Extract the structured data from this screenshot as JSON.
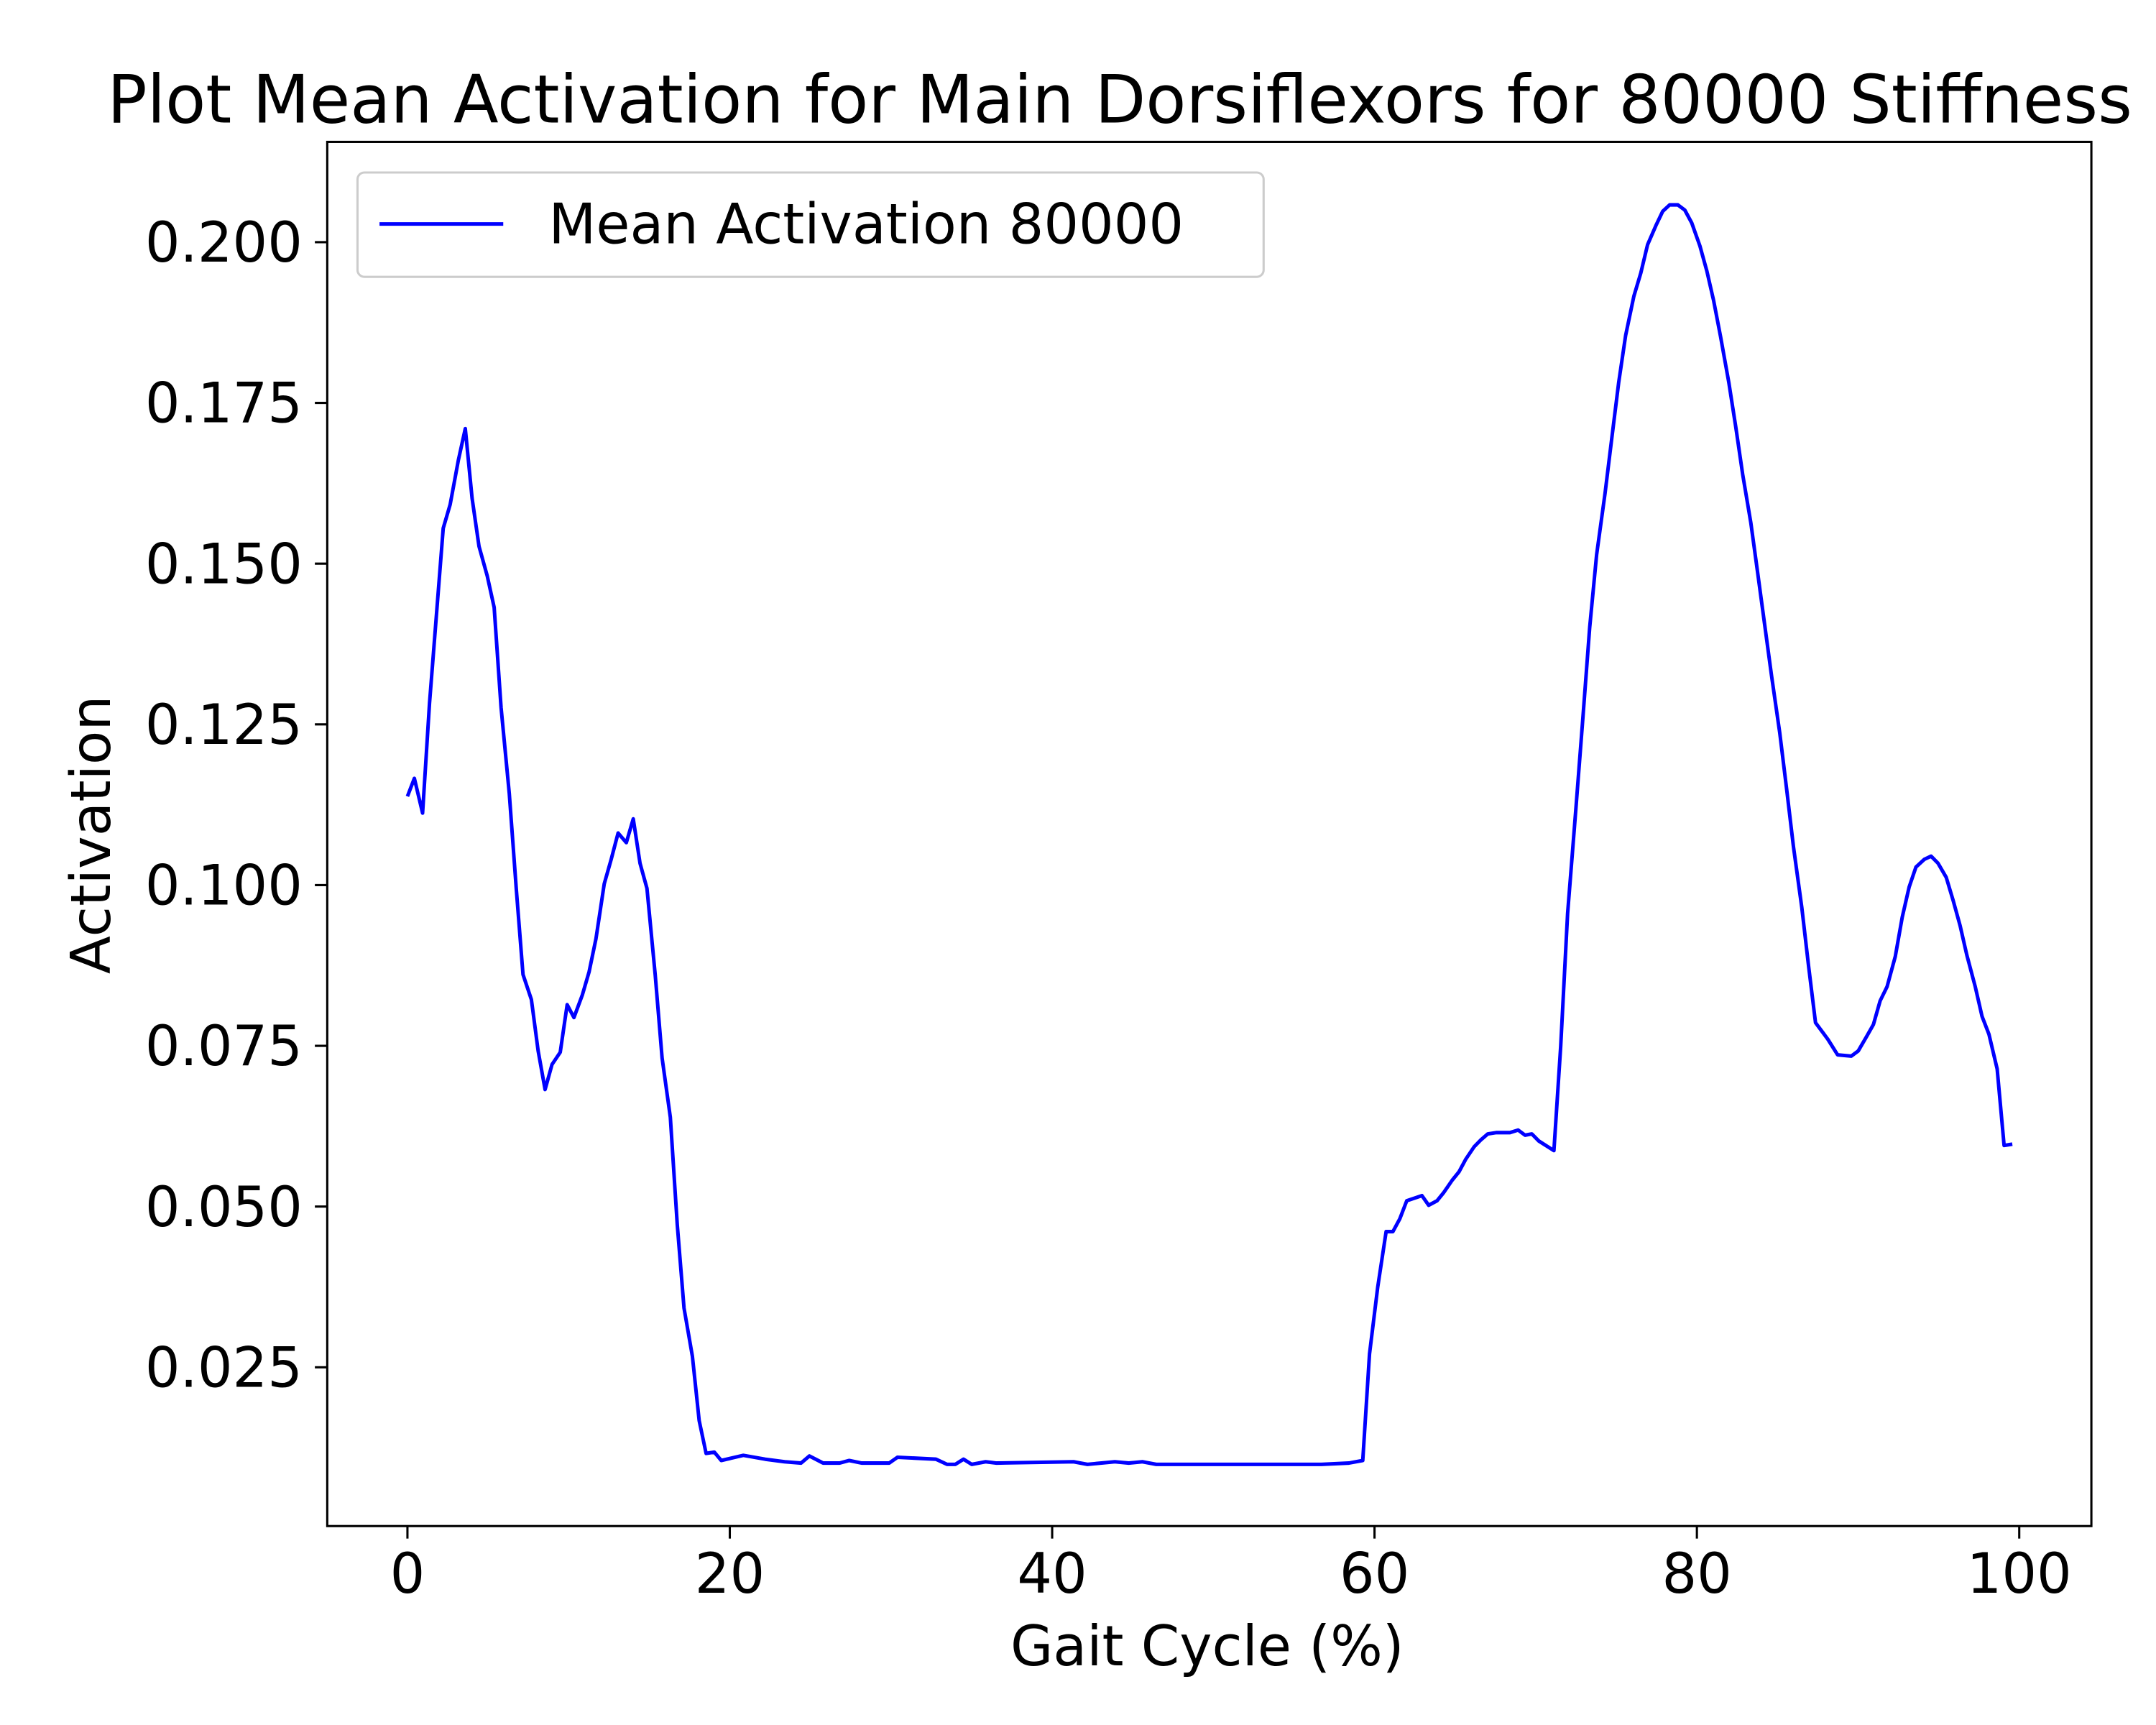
{
  "chart_data": {
    "type": "line",
    "title": "Plot Mean Activation for Main Dorsiflexors for 80000 Stiffness",
    "x_label": "Gait Cycle (%)",
    "y_label": "Activation",
    "legend": "upper left",
    "xlim": [
      -4.975,
      104.475
    ],
    "ylim": [
      0.0003,
      0.2156
    ],
    "xticks": [
      0,
      20,
      40,
      60,
      80,
      100
    ],
    "yticks": [
      0.025,
      {
        "value": 0.05,
        "label": "0.050"
      },
      0.075,
      {
        "value": 0.1,
        "label": "0.100"
      },
      0.125,
      {
        "value": 0.15,
        "label": "0.150"
      },
      0.175,
      {
        "value": 0.2,
        "label": "0.200"
      }
    ],
    "x": [
      0,
      0.43,
      0.94,
      1.37,
      2.22,
      2.65,
      3.16,
      3.59,
      4.01,
      4.44,
      4.95,
      5.38,
      5.81,
      6.32,
      6.75,
      7.17,
      7.69,
      8.11,
      8.54,
      8.97,
      9.48,
      9.91,
      10.33,
      10.85,
      11.27,
      11.7,
      12.21,
      12.64,
      13.07,
      13.58,
      14.01,
      14.43,
      14.86,
      15.37,
      15.8,
      16.31,
      16.74,
      17.16,
      17.68,
      18.1,
      18.53,
      19.04,
      19.47,
      20.84,
      22.2,
      23.4,
      24.42,
      24.94,
      25.79,
      26.81,
      27.41,
      28.18,
      29.89,
      30.4,
      32.79,
      33.48,
      33.99,
      34.5,
      35.01,
      35.87,
      36.55,
      41.33,
      42.19,
      43.89,
      44.75,
      45.6,
      46.46,
      56.7,
      58.41,
      59.27,
      59.69,
      60.2,
      60.72,
      61.14,
      61.57,
      62.0,
      62.94,
      63.36,
      63.88,
      64.3,
      64.82,
      65.24,
      65.67,
      66.18,
      66.61,
      67.03,
      67.55,
      68.4,
      68.91,
      69.34,
      69.76,
      70.19,
      71.13,
      71.55,
      71.98,
      72.5,
      72.93,
      73.35,
      73.78,
      74.3,
      74.72,
      75.15,
      75.58,
      76.09,
      76.52,
      76.94,
      77.46,
      77.88,
      78.31,
      78.82,
      79.25,
      79.68,
      80.19,
      80.62,
      81.04,
      81.47,
      81.98,
      82.41,
      82.84,
      83.35,
      83.77,
      84.2,
      84.63,
      85.14,
      85.57,
      85.99,
      86.51,
      86.93,
      87.36,
      88.13,
      88.73,
      89.58,
      90.01,
      90.52,
      90.95,
      91.37,
      91.8,
      92.31,
      92.74,
      93.17,
      93.59,
      94.11,
      94.53,
      94.96,
      95.47,
      95.9,
      96.33,
      96.75,
      97.27,
      97.69,
      98.12,
      98.63,
      99.06,
      99.57
    ],
    "series": [
      {
        "name": "Mean Activation 80000",
        "color": "#0000ff",
        "values": [
          0.1138,
          0.1166,
          0.1112,
          0.1283,
          0.1555,
          0.1592,
          0.1661,
          0.171,
          0.1602,
          0.1527,
          0.1481,
          0.1432,
          0.1276,
          0.1142,
          0.0995,
          0.0861,
          0.0822,
          0.0742,
          0.0682,
          0.0721,
          0.074,
          0.0814,
          0.0794,
          0.0829,
          0.0865,
          0.0917,
          0.1002,
          0.104,
          0.1081,
          0.1066,
          0.1103,
          0.1034,
          0.0995,
          0.0861,
          0.0731,
          0.0639,
          0.0472,
          0.0342,
          0.0267,
          0.0167,
          0.0116,
          0.0118,
          0.0105,
          0.0113,
          0.0107,
          0.0103,
          0.0101,
          0.0112,
          0.0101,
          0.0101,
          0.0105,
          0.0101,
          0.0101,
          0.011,
          0.0107,
          0.0099,
          0.0099,
          0.0107,
          0.0099,
          0.0103,
          0.0101,
          0.0103,
          0.0099,
          0.0103,
          0.0101,
          0.0103,
          0.0099,
          0.0099,
          0.0101,
          0.0105,
          0.0271,
          0.0375,
          0.0461,
          0.0461,
          0.0481,
          0.0509,
          0.0517,
          0.0502,
          0.0509,
          0.0522,
          0.0541,
          0.0554,
          0.0574,
          0.0593,
          0.0604,
          0.0613,
          0.0615,
          0.0615,
          0.0619,
          0.0611,
          0.0613,
          0.0602,
          0.0587,
          0.0749,
          0.0956,
          0.1121,
          0.1261,
          0.1401,
          0.1514,
          0.1609,
          0.1695,
          0.1782,
          0.1855,
          0.1916,
          0.1952,
          0.1996,
          0.2026,
          0.2048,
          0.2058,
          0.2058,
          0.205,
          0.203,
          0.1994,
          0.1955,
          0.1909,
          0.1853,
          0.1782,
          0.1713,
          0.1639,
          0.1563,
          0.1486,
          0.1406,
          0.1326,
          0.1237,
          0.1149,
          0.106,
          0.0965,
          0.0874,
          0.0786,
          0.076,
          0.0736,
          0.0734,
          0.0742,
          0.0764,
          0.0783,
          0.082,
          0.0842,
          0.0889,
          0.095,
          0.0997,
          0.1028,
          0.104,
          0.1045,
          0.1034,
          0.1012,
          0.0976,
          0.0937,
          0.0891,
          0.0842,
          0.0796,
          0.0768,
          0.0714,
          0.0595,
          0.0597
        ]
      }
    ]
  }
}
